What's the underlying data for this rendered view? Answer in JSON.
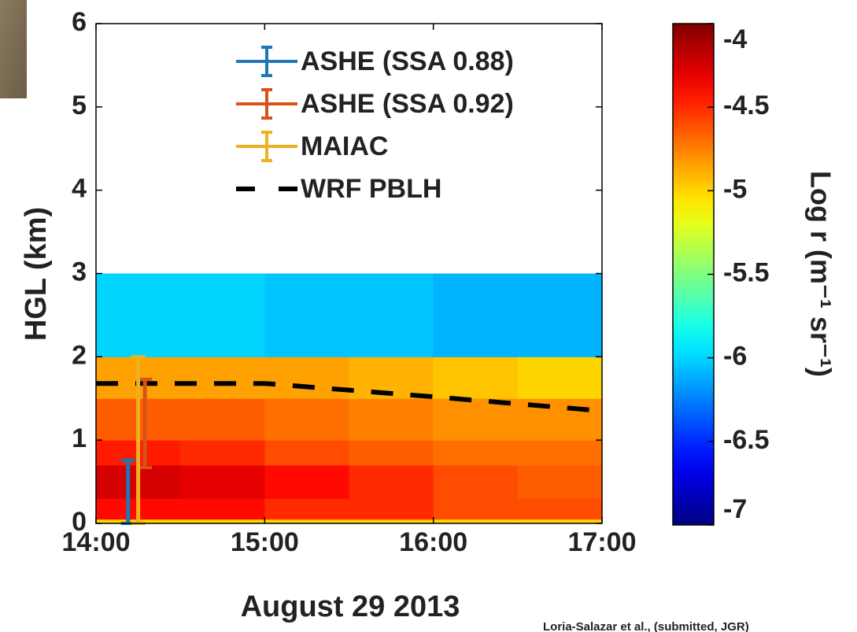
{
  "chart_data": {
    "type": "heatmap",
    "xlabel": "August 29 2013",
    "ylabel": "HGL (km)",
    "xlim": [
      14,
      17
    ],
    "xticks": [
      {
        "value": 14,
        "label": "14:00"
      },
      {
        "value": 15,
        "label": "15:00"
      },
      {
        "value": 16,
        "label": "16:00"
      },
      {
        "value": 17,
        "label": "17:00"
      }
    ],
    "ylim": [
      0,
      6
    ],
    "yticks": [
      0,
      1,
      2,
      3,
      4,
      5,
      6
    ],
    "colormap": "jet",
    "clim": [
      -7,
      -4
    ],
    "cticks": [
      -4,
      -4.5,
      -5,
      -5.5,
      -6,
      -6.5,
      -7
    ],
    "colorbar_label": "Log r (m⁻¹ sr⁻¹)",
    "field": {
      "x_edges": [
        14,
        14.5,
        15,
        15.5,
        16,
        16.5,
        17
      ],
      "z_edges": [
        0,
        0.05,
        0.3,
        0.7,
        1.0,
        1.5,
        2.0,
        3.0
      ],
      "values": [
        [
          -5.0,
          -5.0,
          -5.0,
          -5.0,
          -5.0,
          -5.0
        ],
        [
          -4.4,
          -4.4,
          -4.5,
          -4.5,
          -4.6,
          -4.6
        ],
        [
          -4.25,
          -4.3,
          -4.4,
          -4.5,
          -4.6,
          -4.65
        ],
        [
          -4.45,
          -4.5,
          -4.6,
          -4.65,
          -4.7,
          -4.7
        ],
        [
          -4.65,
          -4.65,
          -4.7,
          -4.75,
          -4.8,
          -4.8
        ],
        [
          -4.85,
          -4.85,
          -4.85,
          -4.9,
          -4.95,
          -5.0
        ],
        [
          -6.0,
          -6.0,
          -6.05,
          -6.05,
          -6.1,
          -6.1
        ]
      ]
    },
    "errorbars": [
      {
        "name": "ASHE (SSA 0.88)",
        "color": "#1f77b4",
        "x": [
          14.19
        ],
        "values": [
          0.38
        ],
        "errors": [
          0.38
        ]
      },
      {
        "name": "ASHE (SSA 0.92)",
        "color": "#d95319",
        "x": [
          14.29
        ],
        "values": [
          1.2
        ],
        "errors": [
          0.53
        ]
      },
      {
        "name": "MAIAC",
        "color": "#edb120",
        "x": [
          14.25
        ],
        "values": [
          1.0
        ],
        "errors": [
          1.0
        ]
      }
    ],
    "lines": [
      {
        "name": "WRF PBLH",
        "color": "#000000",
        "dash": true,
        "x": [
          14,
          15,
          16,
          17
        ],
        "values": [
          1.68,
          1.68,
          1.52,
          1.35
        ]
      }
    ],
    "legend": "upper right",
    "credit": "Loria-Salazar et al., (submitted, JGR)"
  }
}
